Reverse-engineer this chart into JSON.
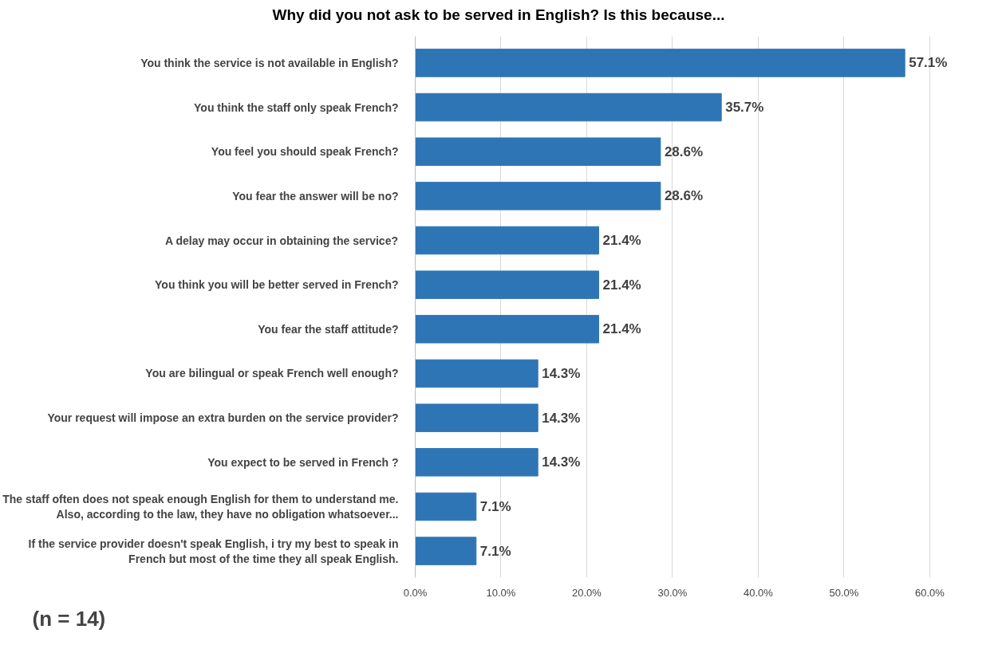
{
  "chart_data": {
    "type": "bar",
    "orientation": "horizontal",
    "title": "Why did you not ask to be served in English? Is this because...",
    "categories": [
      "You think the service is not available in English?",
      "You think the staff only speak French?",
      "You feel you should speak French?",
      "You fear the answer will be no?",
      "A delay may occur in obtaining the service?",
      "You think you will be better served in French?",
      "You fear the staff attitude?",
      "You are bilingual or speak French well enough?",
      "Your request will impose an extra burden on the service provider?",
      "You expect to be served in French ?",
      "The staff often does not speak enough English for them to understand me. Also, according to the law, they have no obligation whatsoever...",
      "If the service provider doesn't speak English, i try my best to speak in French but most of the time they all speak English."
    ],
    "values": [
      57.1,
      35.7,
      28.6,
      28.6,
      21.4,
      21.4,
      21.4,
      14.3,
      14.3,
      14.3,
      7.1,
      7.1
    ],
    "value_labels": [
      "57.1%",
      "35.7%",
      "28.6%",
      "28.6%",
      "21.4%",
      "21.4%",
      "21.4%",
      "14.3%",
      "14.3%",
      "14.3%",
      "7.1%",
      "7.1%"
    ],
    "color": "#2e75b6",
    "xlim": [
      0,
      60
    ],
    "xticks": [
      {
        "value": 0,
        "label": "0.0%"
      },
      {
        "value": 10,
        "label": "10.0%"
      },
      {
        "value": 20,
        "label": "20.0%"
      },
      {
        "value": 30,
        "label": "30.0%"
      },
      {
        "value": 40,
        "label": "40.0%"
      },
      {
        "value": 50,
        "label": "50.0%"
      },
      {
        "value": 60,
        "label": "60.0%"
      }
    ],
    "grid": "x",
    "annotations": [
      "(n = 14)"
    ]
  }
}
